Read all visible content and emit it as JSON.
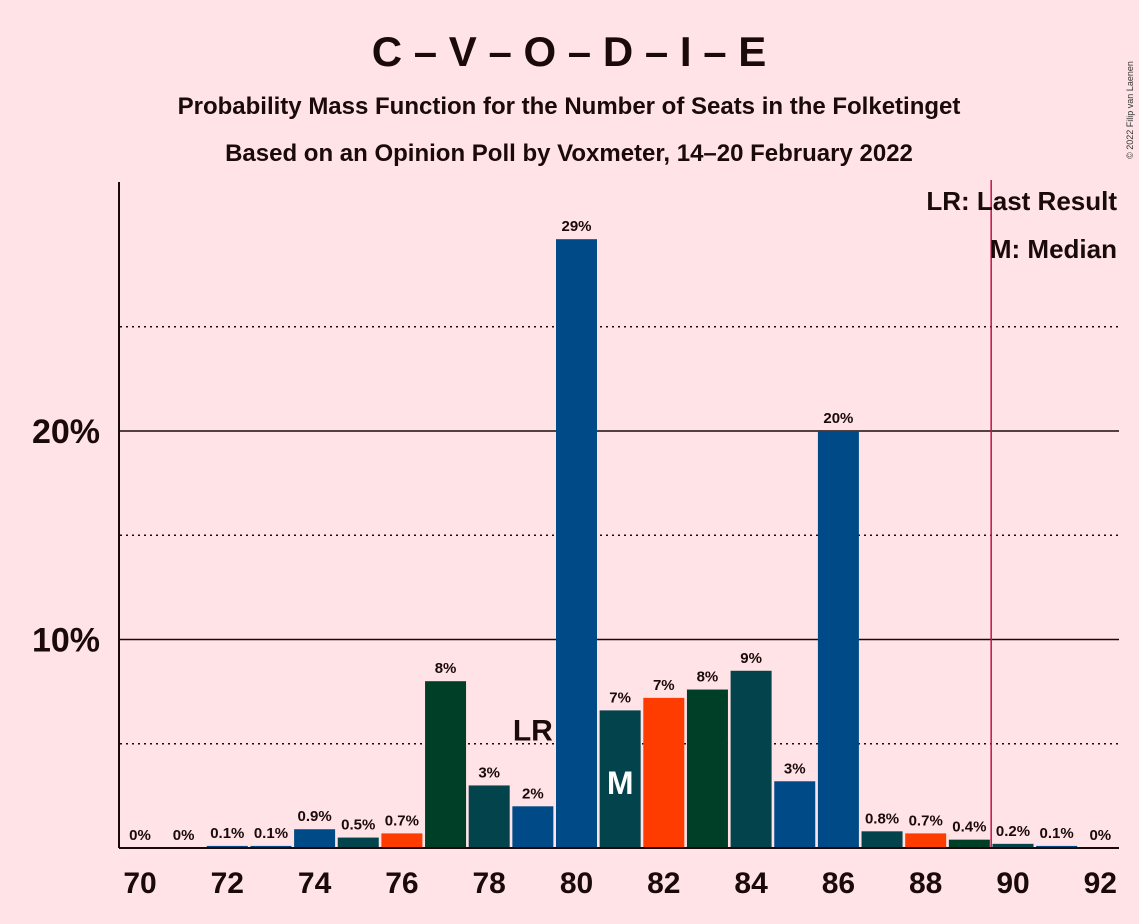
{
  "chart_data": {
    "type": "bar",
    "title": "C – V – O – D – I – E",
    "subtitle": "Probability Mass Function for the Number of Seats in the Folketinget",
    "subtitle2": "Based on an Opinion Poll by Voxmeter, 14–20 February 2022",
    "copyright": "© 2022 Filip van Laenen",
    "legend": {
      "placement": "top-right",
      "items": [
        "LR: Last Result",
        "M: Median"
      ]
    },
    "x": [
      70,
      71,
      72,
      73,
      74,
      75,
      76,
      77,
      78,
      79,
      80,
      81,
      82,
      83,
      84,
      85,
      86,
      87,
      88,
      89,
      90,
      91,
      92
    ],
    "values": [
      0,
      0,
      0.1,
      0.1,
      0.9,
      0.5,
      0.7,
      8,
      3,
      2,
      29.2,
      6.6,
      7.2,
      7.6,
      8.5,
      3.2,
      20,
      0.8,
      0.7,
      0.4,
      0.2,
      0.1,
      0
    ],
    "labels": [
      "0%",
      "0%",
      "0.1%",
      "0.1%",
      "0.9%",
      "0.5%",
      "0.7%",
      "8%",
      "3%",
      "2%",
      "29%",
      "7%",
      "7%",
      "8%",
      "9%",
      "3%",
      "20%",
      "0.8%",
      "0.7%",
      "0.4%",
      "0.2%",
      "0.1%",
      "0%"
    ],
    "bar_colors": [
      "#004B87",
      "#004B87",
      "#004B87",
      "#004B87",
      "#004B87",
      "#03434B",
      "#FF3C00",
      "#003F27",
      "#03434B",
      "#004B87",
      "#004B87",
      "#03434B",
      "#FF3C00",
      "#003F27",
      "#03434B",
      "#004B87",
      "#004B87",
      "#03434B",
      "#FF3C00",
      "#003F27",
      "#03434B",
      "#004B87",
      "#004B87"
    ],
    "xticks": [
      "70",
      "72",
      "74",
      "76",
      "78",
      "80",
      "82",
      "84",
      "86",
      "88",
      "90",
      "92"
    ],
    "yticks": [
      {
        "value": 10,
        "label": "10%"
      },
      {
        "value": 20,
        "label": "20%"
      }
    ],
    "minor_gridlines": [
      5,
      15,
      25
    ],
    "ylim": [
      0,
      32
    ],
    "last_result": {
      "seat": 79,
      "label": "LR"
    },
    "median": {
      "seat": 81,
      "label": "M"
    },
    "majority_line": 89.5,
    "grid": true
  }
}
